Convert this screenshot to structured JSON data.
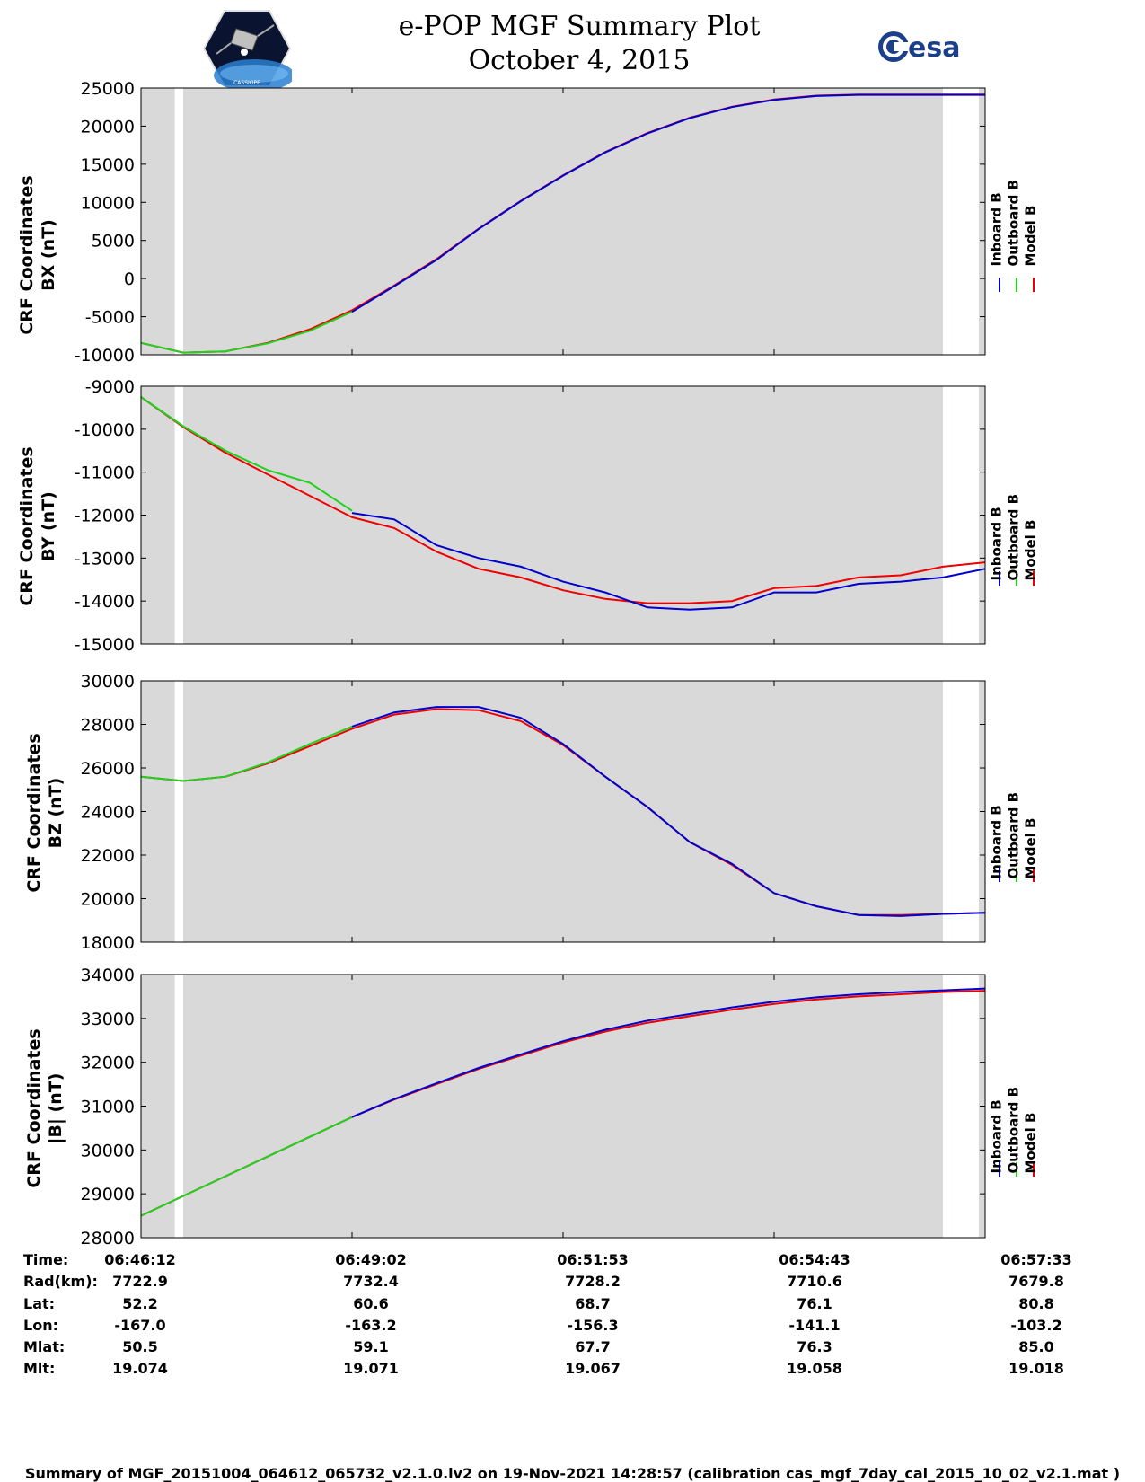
{
  "header": {
    "title_line1": "e-POP MGF Summary Plot",
    "title_line2": "October 4, 2015",
    "left_logo": "cassiope-satellite-logo",
    "left_logo_text": "CASSIOPE",
    "right_logo": "esa-logo",
    "right_logo_text": "esa"
  },
  "colors": {
    "inboard": "#0000cc",
    "outboard": "#1ed21e",
    "model": "#ee0000",
    "plot_bg": "#d9d9d9"
  },
  "legend": {
    "inboard": "Inboard B",
    "outboard": "Outboard B",
    "model": "Model B"
  },
  "chart_data": [
    {
      "type": "line",
      "id": "bx",
      "ylabel_line1": "CRF Coordinates",
      "ylabel_line2": "BX (nT)",
      "ylim": [
        -10000,
        25000
      ],
      "yticks": [
        -10000,
        -5000,
        0,
        5000,
        10000,
        15000,
        20000,
        25000
      ],
      "x": [
        0,
        5,
        10,
        15,
        20,
        25,
        30,
        35,
        40,
        45,
        50,
        55,
        60,
        65,
        70,
        75,
        80,
        85,
        90,
        95,
        100
      ],
      "series": [
        {
          "name": "Model B",
          "values": [
            -8450,
            -9720,
            -9550,
            -8450,
            -6650,
            -4150,
            -900,
            2550,
            6550,
            10200,
            13550,
            16600,
            19100,
            21100,
            22550,
            23500,
            24000,
            24150,
            24150,
            24150,
            24150
          ]
        },
        {
          "name": "Outboard B",
          "values": [
            -8450,
            -9720,
            -9550,
            -8500,
            -6850,
            -4350,
            null,
            null,
            null,
            null,
            null,
            null,
            null,
            null,
            null,
            null,
            null,
            null,
            null,
            null,
            null
          ]
        },
        {
          "name": "Inboard B",
          "values": [
            null,
            null,
            null,
            null,
            null,
            -4350,
            -1000,
            2450,
            6500,
            10150,
            13500,
            16550,
            19050,
            21050,
            22500,
            23450,
            23950,
            24100,
            24100,
            24100,
            24100
          ]
        }
      ]
    },
    {
      "type": "line",
      "id": "by",
      "ylabel_line1": "CRF Coordinates",
      "ylabel_line2": "BY (nT)",
      "ylim": [
        -15000,
        -9000
      ],
      "yticks": [
        -15000,
        -14000,
        -13000,
        -12000,
        -11000,
        -10000,
        -9000
      ],
      "x": [
        0,
        5,
        10,
        15,
        20,
        25,
        30,
        35,
        40,
        45,
        50,
        55,
        60,
        65,
        70,
        75,
        80,
        85,
        90,
        95,
        100
      ],
      "series": [
        {
          "name": "Model B",
          "values": [
            -9250,
            -9950,
            -10550,
            -11050,
            -11550,
            -12050,
            -12300,
            -12850,
            -13250,
            -13450,
            -13750,
            -13950,
            -14050,
            -14050,
            -14000,
            -13700,
            -13650,
            -13450,
            -13400,
            -13200,
            -13100
          ]
        },
        {
          "name": "Outboard B",
          "values": [
            -9250,
            -9930,
            -10500,
            -10950,
            -11250,
            -11900,
            null,
            null,
            null,
            null,
            null,
            null,
            null,
            null,
            null,
            null,
            null,
            null,
            null,
            null,
            null
          ]
        },
        {
          "name": "Inboard B",
          "values": [
            null,
            null,
            null,
            null,
            null,
            -11950,
            -12100,
            -12700,
            -13000,
            -13200,
            -13550,
            -13800,
            -14150,
            -14200,
            -14150,
            -13800,
            -13800,
            -13600,
            -13550,
            -13450,
            -13250
          ]
        }
      ]
    },
    {
      "type": "line",
      "id": "bz",
      "ylabel_line1": "CRF Coordinates",
      "ylabel_line2": "BZ (nT)",
      "ylim": [
        18000,
        30000
      ],
      "yticks": [
        18000,
        20000,
        22000,
        24000,
        26000,
        28000,
        30000
      ],
      "x": [
        0,
        5,
        10,
        15,
        20,
        25,
        30,
        35,
        40,
        45,
        50,
        55,
        60,
        65,
        70,
        75,
        80,
        85,
        90,
        95,
        100
      ],
      "series": [
        {
          "name": "Model B",
          "values": [
            25600,
            25400,
            25600,
            26200,
            27000,
            27800,
            28450,
            28700,
            28650,
            28150,
            27050,
            25600,
            24200,
            22600,
            21550,
            20250,
            19650,
            19250,
            19250,
            19300,
            19350
          ]
        },
        {
          "name": "Outboard B",
          "values": [
            25600,
            25400,
            25600,
            26250,
            27100,
            27900,
            null,
            null,
            null,
            null,
            null,
            null,
            null,
            null,
            null,
            null,
            null,
            null,
            null,
            null,
            null
          ]
        },
        {
          "name": "Inboard B",
          "values": [
            null,
            null,
            null,
            null,
            null,
            27900,
            28550,
            28800,
            28800,
            28300,
            27100,
            25600,
            24200,
            22600,
            21600,
            20250,
            19650,
            19250,
            19200,
            19300,
            19350
          ]
        }
      ]
    },
    {
      "type": "line",
      "id": "bmag",
      "ylabel_line1": "CRF Coordinates",
      "ylabel_line2": "|B| (nT)",
      "ylim": [
        28000,
        34000
      ],
      "yticks": [
        28000,
        29000,
        30000,
        31000,
        32000,
        33000,
        34000
      ],
      "x": [
        0,
        5,
        10,
        15,
        20,
        25,
        30,
        35,
        40,
        45,
        50,
        55,
        60,
        65,
        70,
        75,
        80,
        85,
        90,
        95,
        100
      ],
      "series": [
        {
          "name": "Model B",
          "values": [
            28500,
            28950,
            29400,
            29850,
            30300,
            30750,
            31150,
            31500,
            31850,
            32150,
            32450,
            32700,
            32900,
            33050,
            33200,
            33330,
            33430,
            33500,
            33550,
            33600,
            33630
          ]
        },
        {
          "name": "Outboard B",
          "values": [
            28500,
            28950,
            29400,
            29850,
            30300,
            30750,
            null,
            null,
            null,
            null,
            null,
            null,
            null,
            null,
            null,
            null,
            null,
            null,
            null,
            null,
            null
          ]
        },
        {
          "name": "Inboard B",
          "values": [
            null,
            null,
            null,
            null,
            null,
            30750,
            31160,
            31520,
            31870,
            32180,
            32480,
            32740,
            32950,
            33100,
            33250,
            33380,
            33480,
            33550,
            33600,
            33640,
            33680
          ]
        }
      ]
    }
  ],
  "coverage": {
    "x_min": 0,
    "x_max": 100,
    "gaps": [
      [
        4,
        5
      ],
      [
        95,
        96
      ]
    ],
    "tail_unshaded": [
      96,
      100
    ]
  },
  "info_table": {
    "labels": [
      "Time:",
      "Rad(km):",
      "Lat:",
      "Lon:",
      "Mlat:",
      "Mlt:"
    ],
    "columns": [
      {
        "x": 0,
        "values": [
          "06:46:12",
          "7722.9",
          "52.2",
          "-167.0",
          "50.5",
          "19.074"
        ]
      },
      {
        "x": 25,
        "values": [
          "06:49:02",
          "7732.4",
          "60.6",
          "-163.2",
          "59.1",
          "19.071"
        ]
      },
      {
        "x": 50,
        "values": [
          "06:51:53",
          "7728.2",
          "68.7",
          "-156.3",
          "67.7",
          "19.067"
        ]
      },
      {
        "x": 75,
        "values": [
          "06:54:43",
          "7710.6",
          "76.1",
          "-141.1",
          "76.3",
          "19.058"
        ]
      },
      {
        "x": 100,
        "values": [
          "06:57:33",
          "7679.8",
          "80.8",
          "-103.2",
          "85.0",
          "19.018"
        ]
      }
    ]
  },
  "footer": {
    "text": "Summary of MGF_20151004_064612_065732_v2.1.0.lv2 on 19-Nov-2021 14:28:57 (calibration cas_mgf_7day_cal_2015_10_02_v2.1.mat )"
  }
}
